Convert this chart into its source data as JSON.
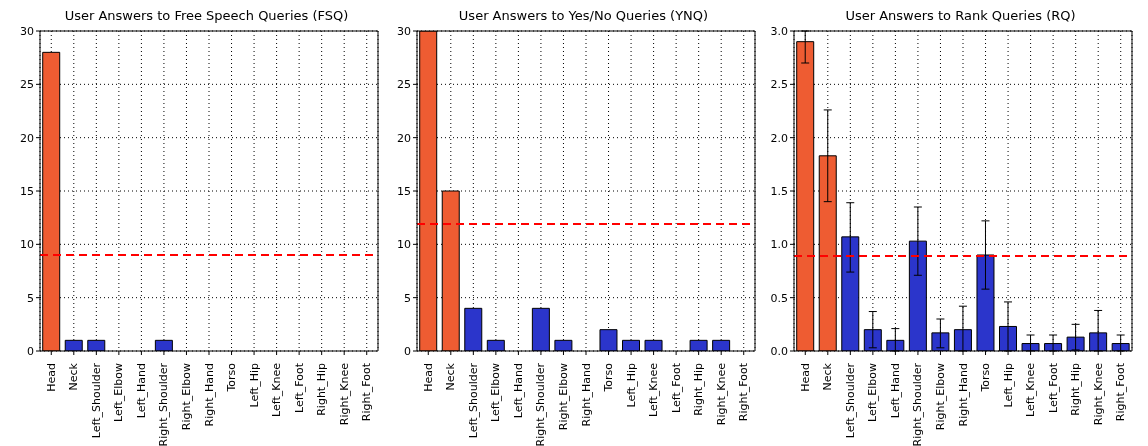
{
  "chart_data": [
    {
      "type": "bar",
      "title": "User Answers to Free Speech Queries (FSQ)",
      "categories": [
        "Head",
        "Neck",
        "Left_Shoulder",
        "Left_Elbow",
        "Left_Hand",
        "Right_Shoulder",
        "Right_Elbow",
        "Right_Hand",
        "Torso",
        "Left_Hip",
        "Left_Knee",
        "Left_Foot",
        "Right_Hip",
        "Right_Knee",
        "Right_Foot"
      ],
      "values": [
        28,
        1,
        1,
        0,
        0,
        1,
        0,
        0,
        0,
        0,
        0,
        0,
        0,
        0,
        0
      ],
      "colors": [
        "#ee5c32",
        "#2b35cb",
        "#2b35cb",
        "#2b35cb",
        "#2b35cb",
        "#2b35cb",
        "#2b35cb",
        "#2b35cb",
        "#2b35cb",
        "#2b35cb",
        "#2b35cb",
        "#2b35cb",
        "#2b35cb",
        "#2b35cb",
        "#2b35cb"
      ],
      "ylim": [
        0,
        30
      ],
      "yticks": [
        0,
        5,
        10,
        15,
        20,
        25,
        30
      ],
      "grid": true,
      "ref_lines": [
        {
          "axis": "y",
          "value": 9,
          "color": "#ff0000",
          "line_style": "dashed"
        }
      ]
    },
    {
      "type": "bar",
      "title": "User Answers to Yes/No Queries (YNQ)",
      "categories": [
        "Head",
        "Neck",
        "Left_Shoulder",
        "Left_Elbow",
        "Left_Hand",
        "Right_Shoulder",
        "Right_Elbow",
        "Right_Hand",
        "Torso",
        "Left_Hip",
        "Left_Knee",
        "Left_Foot",
        "Right_Hip",
        "Right_Knee",
        "Right_Foot"
      ],
      "values": [
        30,
        15,
        4,
        1,
        0,
        4,
        1,
        0,
        2,
        1,
        1,
        0,
        1,
        1,
        0
      ],
      "colors": [
        "#ee5c32",
        "#ee5c32",
        "#2b35cb",
        "#2b35cb",
        "#2b35cb",
        "#2b35cb",
        "#2b35cb",
        "#2b35cb",
        "#2b35cb",
        "#2b35cb",
        "#2b35cb",
        "#2b35cb",
        "#2b35cb",
        "#2b35cb",
        "#2b35cb"
      ],
      "ylim": [
        0,
        30
      ],
      "yticks": [
        0,
        5,
        10,
        15,
        20,
        25,
        30
      ],
      "grid": true,
      "ref_lines": [
        {
          "axis": "y",
          "value": 11.9,
          "color": "#ff0000",
          "line_style": "dashed"
        }
      ]
    },
    {
      "type": "bar",
      "title": "User Answers to Rank Queries (RQ)",
      "categories": [
        "Head",
        "Neck",
        "Left_Shoulder",
        "Left_Elbow",
        "Left_Hand",
        "Right_Shoulder",
        "Right_Elbow",
        "Right_Hand",
        "Torso",
        "Left_Hip",
        "Left_Knee",
        "Left_Foot",
        "Right_Hip",
        "Right_Knee",
        "Right_Foot"
      ],
      "values": [
        2.9,
        1.83,
        1.07,
        0.2,
        0.1,
        1.03,
        0.17,
        0.2,
        0.9,
        0.23,
        0.07,
        0.07,
        0.13,
        0.17,
        0.07
      ],
      "errors": [
        [
          2.7,
          3.0
        ],
        [
          1.4,
          2.26
        ],
        [
          0.74,
          1.39
        ],
        [
          0.03,
          0.37
        ],
        [
          0,
          0.21
        ],
        [
          0.71,
          1.35
        ],
        [
          0.03,
          0.3
        ],
        [
          0,
          0.42
        ],
        [
          0.58,
          1.22
        ],
        [
          0,
          0.46
        ],
        [
          0,
          0.15
        ],
        [
          0,
          0.15
        ],
        [
          0.01,
          0.25
        ],
        [
          0,
          0.38
        ],
        [
          0,
          0.15
        ]
      ],
      "colors": [
        "#ee5c32",
        "#ee5c32",
        "#2b35cb",
        "#2b35cb",
        "#2b35cb",
        "#2b35cb",
        "#2b35cb",
        "#2b35cb",
        "#2b35cb",
        "#2b35cb",
        "#2b35cb",
        "#2b35cb",
        "#2b35cb",
        "#2b35cb",
        "#2b35cb"
      ],
      "ylim": [
        0,
        3
      ],
      "yticks": [
        {
          "value": 0,
          "label": "0.0"
        },
        {
          "value": 0.5,
          "label": "0.5"
        },
        {
          "value": 1,
          "label": "1.0"
        },
        {
          "value": 1.5,
          "label": "1.5"
        },
        {
          "value": 2,
          "label": "2.0"
        },
        {
          "value": 2.5,
          "label": "2.5"
        },
        {
          "value": 3,
          "label": "3.0"
        }
      ],
      "grid": true,
      "ref_lines": [
        {
          "axis": "y",
          "value": 0.89,
          "color": "#ff0000",
          "line_style": "dashed"
        }
      ]
    }
  ]
}
